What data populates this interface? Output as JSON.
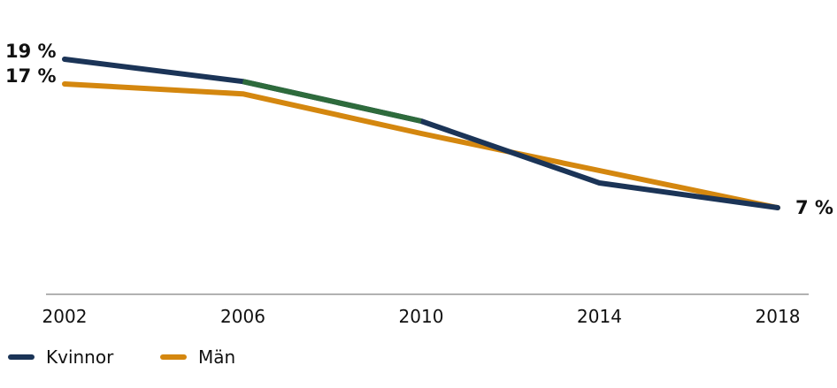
{
  "chart_data": {
    "type": "line",
    "x": [
      2002,
      2006,
      2010,
      2014,
      2018
    ],
    "series": [
      {
        "name": "Kvinnor",
        "values": [
          19,
          17.2,
          14,
          9,
          7
        ],
        "color": "#1b3457",
        "highlight_segment": {
          "from": 2006,
          "to": 2010,
          "color": "#2e6b3c"
        }
      },
      {
        "name": "Män",
        "values": [
          17,
          16.2,
          13,
          10,
          7
        ],
        "color": "#d4870f"
      }
    ],
    "ylim": [
      0,
      20
    ],
    "grid": false,
    "legend_position": "bottom-left",
    "data_labels": [
      {
        "series": "Kvinnor",
        "x": 2002,
        "text": "19 %"
      },
      {
        "series": "Män",
        "x": 2002,
        "text": "17 %"
      },
      {
        "series": "Män",
        "x": 2018,
        "text": "7 %"
      }
    ]
  }
}
